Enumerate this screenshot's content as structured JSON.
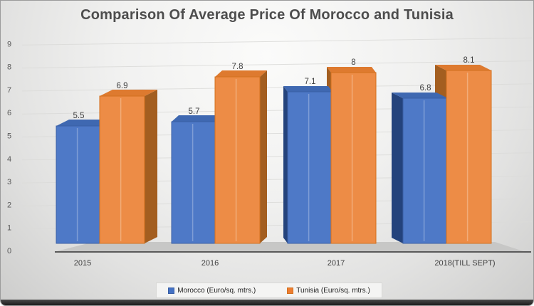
{
  "title": "Comparison Of Average Price Of Morocco and Tunisia",
  "chart_data": {
    "type": "bar",
    "subtype": "3d-clustered-column",
    "title": "Comparison Of Average Price Of Morocco and Tunisia",
    "categories": [
      "2015",
      "2016",
      "2017",
      "2018(TILL SEPT)"
    ],
    "series": [
      {
        "name": "Morocco (Euro/sq. mtrs.)",
        "values": [
          5.5,
          5.7,
          7.1,
          6.8
        ],
        "labels": [
          "5.5",
          "5.7",
          "7.1",
          "6.8"
        ],
        "front_color": "#4E79C7",
        "top_color": "#3F68B1",
        "side_color": "#24437C",
        "edge_color": "#3A5FA5",
        "legend_swatch_color": "#4472C4"
      },
      {
        "name": "Tunisia (Euro/sq. mtrs.)",
        "values": [
          6.9,
          7.8,
          8,
          8.1
        ],
        "labels": [
          "6.9",
          "7.8",
          "8",
          "8.1"
        ],
        "front_color": "#ED8C46",
        "top_color": "#DE7A2F",
        "side_color": "#A35E20",
        "edge_color": "#D2711F",
        "legend_swatch_color": "#ED7D31"
      }
    ],
    "ylim": [
      0,
      9
    ],
    "yticks": [
      0,
      1,
      2,
      3,
      4,
      5,
      6,
      7,
      8,
      9
    ],
    "grid": true,
    "data_labels_shown": true,
    "legend_position": "bottom"
  }
}
